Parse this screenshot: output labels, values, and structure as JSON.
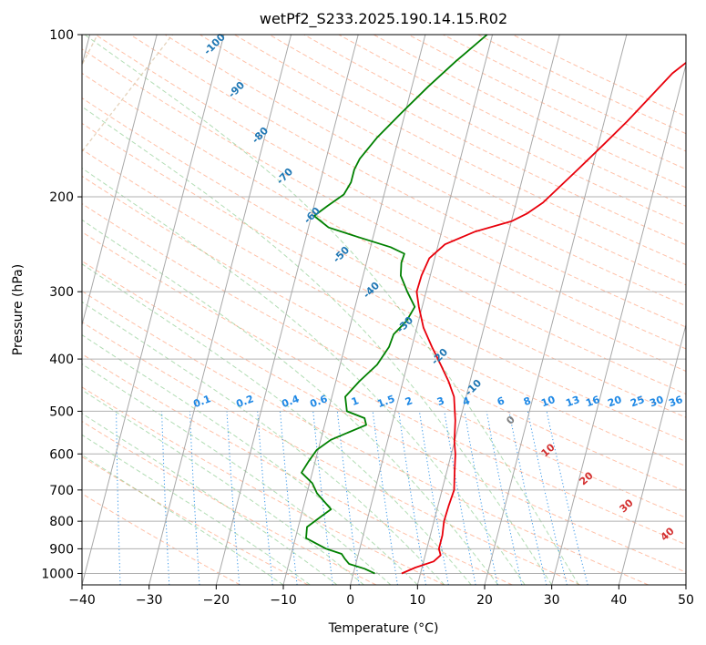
{
  "chart_data": {
    "type": "line",
    "title": "wetPf2_S233.2025.190.14.15.R02",
    "xlabel": "Temperature (°C)",
    "ylabel": "Pressure (hPa)",
    "xlim": [
      -40,
      50
    ],
    "ylim": [
      1050,
      100
    ],
    "y_scale": "log",
    "grid": true,
    "x_ticks": [
      "−40",
      "−30",
      "−20",
      "−10",
      "0",
      "10",
      "20",
      "30",
      "40",
      "50"
    ],
    "y_ticks": [
      "100",
      "200",
      "300",
      "400",
      "500",
      "600",
      "700",
      "800",
      "900",
      "1000"
    ],
    "colors": {
      "temperature": "#e8000b",
      "dewpoint": "#008000",
      "isotherm_label": "#1f77b4",
      "mixing_ratio": "#1e88e5",
      "dry_adiabat": "#ffa07a",
      "moist_adiabat": "#66bb6a",
      "wbt_label": "#d32f2f"
    },
    "series": [
      {
        "values": [
          [
            7.2,
            1000
          ],
          [
            9,
            975
          ],
          [
            11.5,
            950
          ],
          [
            12.3,
            925
          ],
          [
            11.8,
            900
          ],
          [
            11.8,
            850
          ],
          [
            11.5,
            800
          ],
          [
            11.6,
            750
          ],
          [
            11.8,
            700
          ],
          [
            11.2,
            650
          ],
          [
            10.6,
            600
          ],
          [
            10,
            570
          ],
          [
            9.3,
            520
          ],
          [
            8.2,
            470
          ],
          [
            6.8,
            440
          ],
          [
            5,
            410
          ],
          [
            3,
            380
          ],
          [
            1,
            350
          ],
          [
            -0.5,
            320
          ],
          [
            -1.4,
            300
          ],
          [
            -1.3,
            280
          ],
          [
            -0.8,
            260
          ],
          [
            1,
            245
          ],
          [
            5,
            232
          ],
          [
            10,
            222
          ],
          [
            12,
            215
          ],
          [
            14,
            205
          ],
          [
            17.6,
            180
          ],
          [
            20.8,
            160
          ],
          [
            23.4,
            145
          ],
          [
            26,
            130
          ],
          [
            28.3,
            118
          ],
          [
            30.8,
            110
          ],
          [
            33,
            102
          ]
        ]
      },
      {
        "values": [
          [
            3.2,
            1000
          ],
          [
            1.5,
            980
          ],
          [
            -1,
            960
          ],
          [
            -1.8,
            940
          ],
          [
            -2.5,
            920
          ],
          [
            -5,
            900
          ],
          [
            -8.4,
            860
          ],
          [
            -8.7,
            820
          ],
          [
            -6.8,
            780
          ],
          [
            -5.8,
            760
          ],
          [
            -8.5,
            710
          ],
          [
            -9.6,
            680
          ],
          [
            -11.6,
            650
          ],
          [
            -11,
            620
          ],
          [
            -10.2,
            590
          ],
          [
            -8.5,
            565
          ],
          [
            -3.8,
            530
          ],
          [
            -4.3,
            515
          ],
          [
            -7.2,
            500
          ],
          [
            -8,
            470
          ],
          [
            -6.5,
            440
          ],
          [
            -4.5,
            410
          ],
          [
            -3.4,
            380
          ],
          [
            -3.2,
            360
          ],
          [
            -1.8,
            340
          ],
          [
            -1.1,
            320
          ],
          [
            -2.8,
            300
          ],
          [
            -4.4,
            280
          ],
          [
            -4.8,
            265
          ],
          [
            -4.7,
            255
          ],
          [
            -7,
            248
          ],
          [
            -12,
            238
          ],
          [
            -17,
            228
          ],
          [
            -19.6,
            217
          ],
          [
            -18,
            208
          ],
          [
            -16,
            198
          ],
          [
            -15.4,
            188
          ],
          [
            -15.4,
            178
          ],
          [
            -15,
            170
          ],
          [
            -13.2,
            155
          ],
          [
            -10.6,
            140
          ],
          [
            -7.6,
            125
          ],
          [
            -4.4,
            112
          ],
          [
            -0.8,
            100
          ]
        ]
      }
    ],
    "isotherm_labels": [
      "-100",
      "-90",
      "-80",
      "-70",
      "-60",
      "-50",
      "-40",
      "-30",
      "-20",
      "-10"
    ],
    "mixing_ratio_labels": [
      "0.1",
      "0.2",
      "0.4",
      "0.6",
      "1",
      "1.5",
      "2",
      "3",
      "4",
      "6",
      "8",
      "10",
      "13",
      "16",
      "20",
      "25",
      "30",
      "36"
    ],
    "wbt_labels": [
      "0",
      "10",
      "20",
      "30",
      "40"
    ]
  }
}
